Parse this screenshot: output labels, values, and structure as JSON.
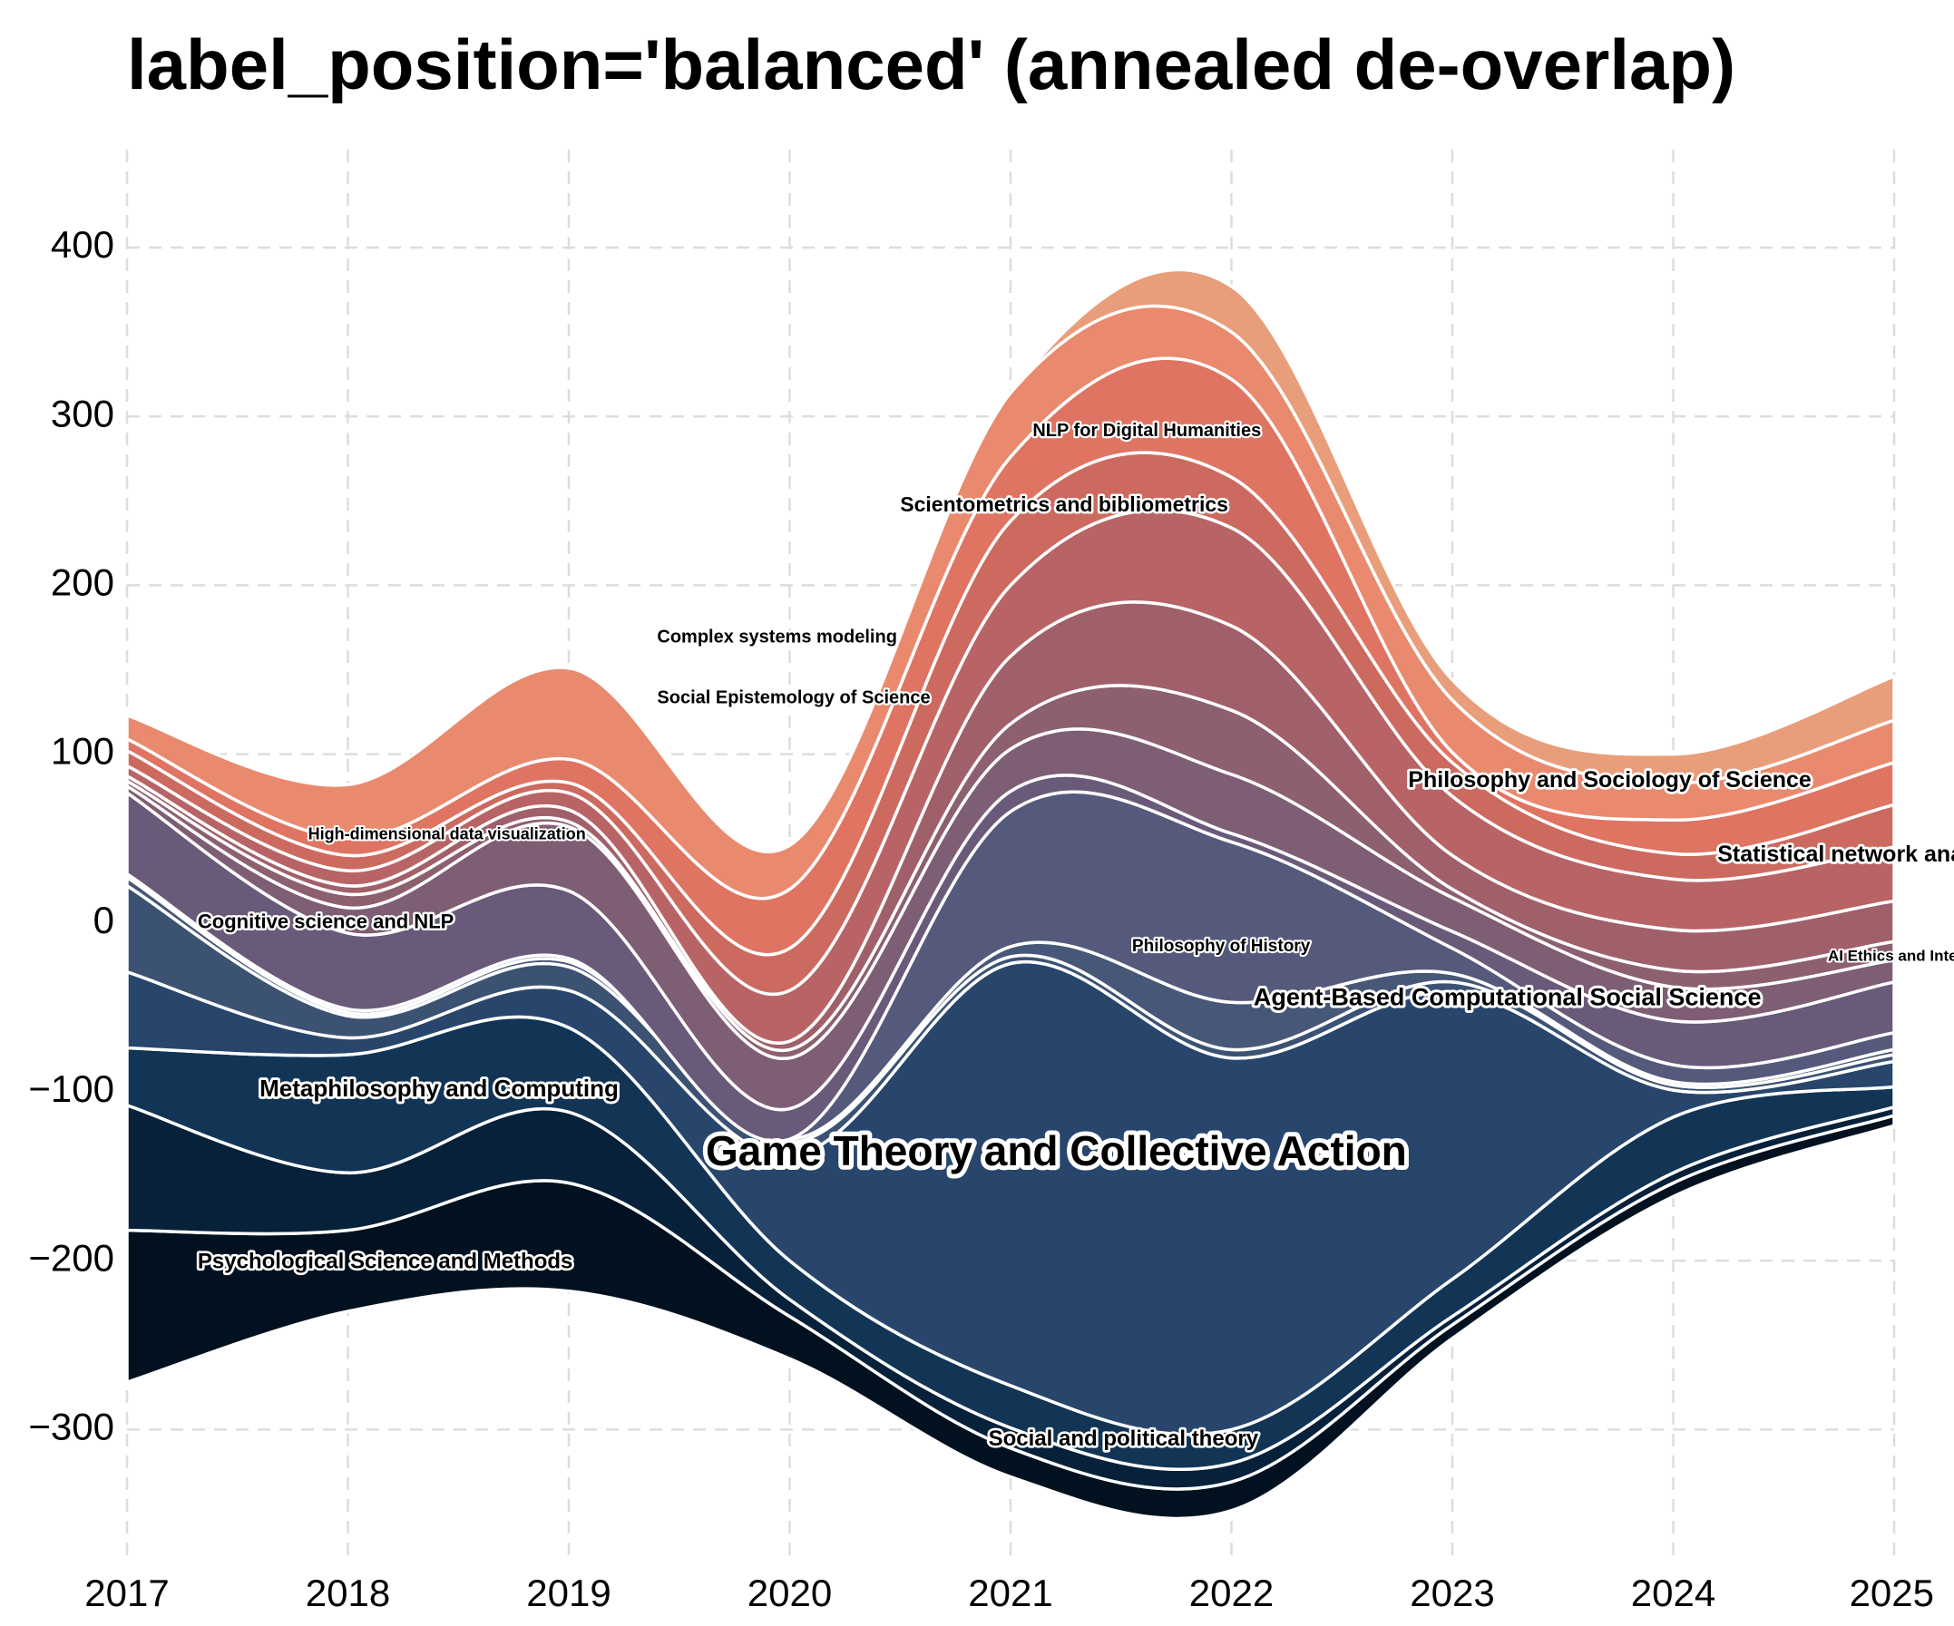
{
  "chart_data": {
    "type": "area",
    "title": "label_position='balanced' (annealed de-overlap)",
    "xlabel": "",
    "ylabel": "",
    "x": [
      2017,
      2018,
      2019,
      2020,
      2021,
      2022,
      2023,
      2024,
      2025
    ],
    "ylim": [
      -370,
      465
    ],
    "xlim": [
      2017,
      2025
    ],
    "y_ticks": [
      400,
      300,
      200,
      100,
      0,
      -100,
      -200,
      -300
    ],
    "x_ticks": [
      2017,
      2018,
      2019,
      2020,
      2021,
      2022,
      2023,
      2024,
      2025
    ],
    "grid": true,
    "legend": "none",
    "baseline": [
      -272,
      -230,
      -218,
      -258,
      -328,
      -348,
      -246,
      -162,
      -120
    ],
    "series": [
      {
        "name": "Psychological Science and Methods",
        "values": [
          90,
          48,
          64,
          25,
          17,
          17,
          8,
          8,
          6
        ],
        "color": "#02111f"
      },
      {
        "name": "Social and political theory",
        "values": [
          74,
          34,
          42,
          10,
          12,
          11,
          5,
          6,
          5
        ],
        "color": "#08213a"
      },
      {
        "name": "Metaphilosophy and Computing",
        "values": [
          34,
          70,
          50,
          23,
          25,
          20,
          22,
          33,
          12
        ],
        "color": "#123556"
      },
      {
        "name": "Game Theory and Collective Action",
        "values": [
          45,
          10,
          22,
          62,
          250,
          220,
          170,
          16,
          15
        ],
        "color": "#28466c"
      },
      {
        "name": "Agent-Based Computational Social Science",
        "values": [
          51,
          13,
          14,
          8,
          4,
          5,
          6,
          3,
          4
        ],
        "color": "#3b5273"
      },
      {
        "name": "Philosophy of History",
        "values": [
          5,
          2,
          3,
          2,
          6,
          28,
          5,
          2,
          3
        ],
        "color": "#475778"
      },
      {
        "name": "AI Ethics and Interpretability",
        "values": [
          2,
          2,
          2,
          0,
          80,
          95,
          15,
          10,
          10
        ],
        "color": "#555a7c"
      },
      {
        "name": "Cognitive science and NLP",
        "values": [
          48,
          45,
          40,
          18,
          12,
          5,
          10,
          26,
          30
        ],
        "color": "#6a5a7a"
      },
      {
        "name": "High-dimensional data visualization",
        "values": [
          4,
          15,
          38,
          30,
          25,
          35,
          20,
          20,
          13
        ],
        "color": "#7e5e74"
      },
      {
        "name": "Statistical network analysis",
        "values": [
          3,
          8,
          3,
          5,
          15,
          38,
          5,
          10,
          11
        ],
        "color": "#8c6070"
      },
      {
        "name": "Philosophy and Sociology of Science",
        "values": [
          3,
          5,
          7,
          5,
          40,
          50,
          20,
          24,
          24
        ],
        "color": "#a0606a"
      },
      {
        "name": "Social Epistemology of Science",
        "values": [
          6,
          9,
          10,
          30,
          42,
          58,
          35,
          30,
          32
        ],
        "color": "#b86466"
      },
      {
        "name": "Complex systems modeling",
        "values": [
          9,
          9,
          6,
          25,
          38,
          30,
          20,
          15,
          25
        ],
        "color": "#cc6a60"
      },
      {
        "name": "Scientometrics and bibliometrics",
        "values": [
          7,
          10,
          14,
          35,
          38,
          58,
          6,
          20,
          25
        ],
        "color": "#df7462"
      },
      {
        "name": "NLP for Digital Humanities",
        "values": [
          14,
          32,
          54,
          26,
          38,
          28,
          31,
          22,
          25
        ],
        "color": "#e98a6e"
      },
      {
        "name": "",
        "values": [
          0,
          0,
          0,
          0,
          0,
          27,
          12,
          17,
          26
        ],
        "color": "#e89e7a"
      }
    ],
    "labels": [
      {
        "text": "NLP for Digital Humanities",
        "x": 2021.1,
        "y": 291,
        "size": 20
      },
      {
        "text": "Scientometrics and bibliometrics",
        "x": 2020.5,
        "y": 247,
        "size": 23
      },
      {
        "text": "Complex systems modeling",
        "x": 2019.4,
        "y": 169,
        "size": 20
      },
      {
        "text": "Social Epistemology of Science",
        "x": 2019.4,
        "y": 133,
        "size": 20
      },
      {
        "text": "High-dimensional data visualization",
        "x": 2017.82,
        "y": 52,
        "size": 18
      },
      {
        "text": "Cognitive science and NLP",
        "x": 2017.32,
        "y": 0,
        "size": 22
      },
      {
        "text": "Metaphilosophy and Computing",
        "x": 2017.6,
        "y": -99,
        "size": 26
      },
      {
        "text": "Psychological Science and Methods",
        "x": 2017.32,
        "y": -201,
        "size": 24
      },
      {
        "text": "Game Theory and Collective Action",
        "x": 2019.62,
        "y": -137,
        "size": 46
      },
      {
        "text": "Social and political theory",
        "x": 2020.9,
        "y": -306,
        "size": 24
      },
      {
        "text": "Philosophy of History",
        "x": 2021.55,
        "y": -14,
        "size": 19
      },
      {
        "text": "Agent-Based Computational Social Science",
        "x": 2022.1,
        "y": -45,
        "size": 27
      },
      {
        "text": "AI Ethics and Interpretability",
        "x": 2024.7,
        "y": -20,
        "size": 17
      },
      {
        "text": "Statistical network analysis",
        "x": 2024.2,
        "y": 40,
        "size": 25
      },
      {
        "text": "Philosophy and Sociology of Science",
        "x": 2022.8,
        "y": 84,
        "size": 25
      }
    ]
  }
}
